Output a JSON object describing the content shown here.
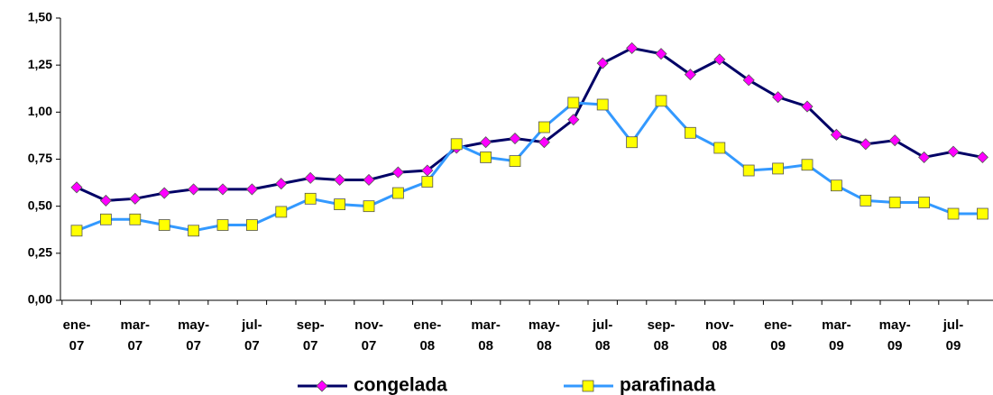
{
  "chart_data": {
    "type": "line",
    "categories": [
      "ene-\n07",
      null,
      "mar-\n07",
      null,
      "may-\n07",
      null,
      "jul-\n07",
      null,
      "sep-\n07",
      null,
      "nov-\n07",
      null,
      "ene-\n08",
      null,
      "mar-\n08",
      null,
      "may-\n08",
      null,
      "jul-\n08",
      null,
      "sep-\n08",
      null,
      "nov-\n08",
      null,
      "ene-\n09",
      null,
      "mar-\n09",
      null,
      "may-\n09",
      null,
      "jul-\n09",
      null
    ],
    "series": [
      {
        "name": "congelada",
        "color": "#000066",
        "marker_color": "#ff00ff",
        "marker": "diamond",
        "values": [
          0.6,
          0.53,
          0.54,
          0.57,
          0.59,
          0.59,
          0.59,
          0.62,
          0.65,
          0.64,
          0.64,
          0.68,
          0.69,
          0.81,
          0.84,
          0.86,
          0.84,
          0.96,
          1.26,
          1.34,
          1.31,
          1.2,
          1.28,
          1.17,
          1.08,
          1.03,
          0.88,
          0.83,
          0.85,
          0.76,
          0.79,
          0.76
        ]
      },
      {
        "name": "parafinada",
        "color": "#3399ff",
        "marker_color": "#ffff00",
        "marker": "square",
        "values": [
          0.37,
          0.43,
          0.43,
          0.4,
          0.37,
          0.4,
          0.4,
          0.47,
          0.54,
          0.51,
          0.5,
          0.57,
          0.63,
          0.83,
          0.76,
          0.74,
          0.92,
          1.05,
          1.04,
          0.84,
          1.06,
          0.89,
          0.81,
          0.69,
          0.7,
          0.72,
          0.61,
          0.53,
          0.52,
          0.52,
          0.46,
          0.46
        ]
      }
    ],
    "ylim": [
      0,
      1.5
    ],
    "yticks": [
      {
        "value": 0,
        "label": "0,00"
      },
      {
        "value": 0.25,
        "label": "0,25"
      },
      {
        "value": 0.5,
        "label": "0,50"
      },
      {
        "value": 0.75,
        "label": "0,75"
      },
      {
        "value": 1,
        "label": "1,00"
      },
      {
        "value": 1.25,
        "label": "1,25"
      },
      {
        "value": 1.5,
        "label": "1,50"
      }
    ],
    "grid": false,
    "legend": "bottom"
  }
}
